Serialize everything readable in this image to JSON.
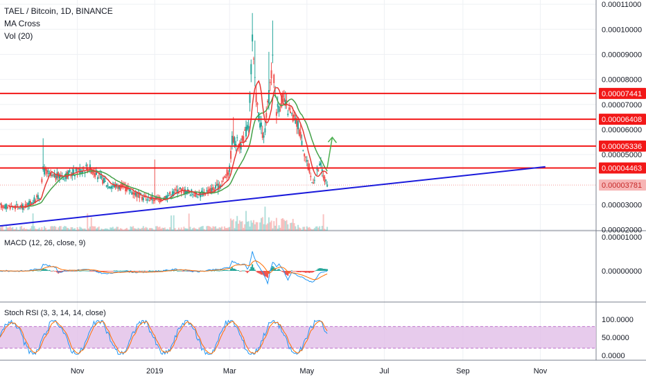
{
  "header": {
    "symbol_line": "TAEL / Bitcoin, 1D, BINANCE",
    "ma_label": "MA Cross",
    "vol_label": "Vol (20)"
  },
  "panes": {
    "macd_label": "MACD (12, 26, close, 9)",
    "rsi_label": "Stoch RSI (3, 3, 14, 14, close)"
  },
  "colors": {
    "candle_up": "#26a69a",
    "candle_down": "#ef5350",
    "fast_ma": "#e53935",
    "slow_ma": "#43a047",
    "trendline": "#1a1adb",
    "resistance": "#f21818",
    "arrow": "#4caf50",
    "macd_line": "#2196f3",
    "signal_line": "#ff6d00",
    "rsi_k": "#2196f3",
    "rsi_d": "#ff6d00",
    "rsi_band": "#e1bee7"
  },
  "chart_data": {
    "type": "candlestick",
    "symbol": "TAEL / Bitcoin",
    "interval": "1D",
    "exchange": "BINANCE",
    "x_axis": {
      "ticks": [
        {
          "label": "Nov",
          "date": "2018-11-01"
        },
        {
          "label": "2019",
          "date": "2019-01-01"
        },
        {
          "label": "Mar",
          "date": "2019-03-01"
        },
        {
          "label": "May",
          "date": "2019-05-01"
        },
        {
          "label": "Jul",
          "date": "2019-07-01"
        },
        {
          "label": "Sep",
          "date": "2019-09-01"
        },
        {
          "label": "Nov",
          "date": "2019-11-01"
        }
      ],
      "range": [
        "2018-09-01",
        "2019-12-15"
      ]
    },
    "price_axis": {
      "range": [
        1.96e-05,
        0.0001117
      ],
      "ticks": [
        "0.00011000",
        "0.00010000",
        "0.00009000",
        "0.00008000",
        "0.00007000",
        "0.00006000",
        "0.00005000",
        "0.00003000",
        "0.00002000"
      ]
    },
    "price_markers": [
      {
        "value": 7.441e-05,
        "label": "0.00007441"
      },
      {
        "value": 6.408e-05,
        "label": "0.00006408"
      },
      {
        "value": 5.336e-05,
        "label": "0.00005336"
      },
      {
        "value": 4.463e-05,
        "label": "0.00004463"
      },
      {
        "value": 3.781e-05,
        "label": "0.00003781",
        "type": "last_price"
      }
    ],
    "resistance_lines": [
      7.441e-05,
      6.408e-05,
      5.336e-05,
      4.463e-05
    ],
    "trendline": {
      "start": {
        "date": "2018-09-01",
        "value": 2.15e-05
      },
      "end": {
        "date": "2019-11-05",
        "value": 4.51e-05
      }
    },
    "projection_arrow": {
      "start": {
        "date": "2019-05-17",
        "value": 4.48e-05
      },
      "end": {
        "date": "2019-05-21",
        "value": 5.69e-05
      }
    },
    "price_keypoints": [
      {
        "date": "2018-09-01",
        "value": 2.95e-05
      },
      {
        "date": "2018-09-20",
        "value": 2.9e-05
      },
      {
        "date": "2018-10-03",
        "value": 3.35e-05
      },
      {
        "date": "2018-10-05",
        "value": 4.4e-05
      },
      {
        "date": "2018-10-12",
        "value": 4.1e-05
      },
      {
        "date": "2018-10-25",
        "value": 4.2e-05
      },
      {
        "date": "2018-11-10",
        "value": 4.5e-05
      },
      {
        "date": "2018-11-25",
        "value": 3.8e-05
      },
      {
        "date": "2018-12-08",
        "value": 3.7e-05
      },
      {
        "date": "2018-12-22",
        "value": 3.3e-05
      },
      {
        "date": "2019-01-05",
        "value": 3.2e-05
      },
      {
        "date": "2019-01-20",
        "value": 3.6e-05
      },
      {
        "date": "2019-02-05",
        "value": 3.4e-05
      },
      {
        "date": "2019-02-20",
        "value": 3.7e-05
      },
      {
        "date": "2019-03-01",
        "value": 4.4e-05
      },
      {
        "date": "2019-03-03",
        "value": 5.6e-05
      },
      {
        "date": "2019-03-10",
        "value": 5.4e-05
      },
      {
        "date": "2019-03-16",
        "value": 6.2e-05
      },
      {
        "date": "2019-03-19",
        "value": 9.5e-05
      },
      {
        "date": "2019-03-21",
        "value": 7.8e-05
      },
      {
        "date": "2019-03-24",
        "value": 6.5e-05
      },
      {
        "date": "2019-03-28",
        "value": 5.6e-05
      },
      {
        "date": "2019-04-01",
        "value": 7.3e-05
      },
      {
        "date": "2019-04-04",
        "value": 8.7e-05
      },
      {
        "date": "2019-04-07",
        "value": 6.8e-05
      },
      {
        "date": "2019-04-12",
        "value": 7.2e-05
      },
      {
        "date": "2019-04-18",
        "value": 6.6e-05
      },
      {
        "date": "2019-04-24",
        "value": 6.2e-05
      },
      {
        "date": "2019-05-01",
        "value": 4.7e-05
      },
      {
        "date": "2019-05-05",
        "value": 3.9e-05
      },
      {
        "date": "2019-05-09",
        "value": 4.3e-05
      },
      {
        "date": "2019-05-12",
        "value": 4.6e-05
      },
      {
        "date": "2019-05-14",
        "value": 4.1e-05
      },
      {
        "date": "2019-05-17",
        "value": 3.78e-05
      }
    ],
    "macd": {
      "y_ticks": [
        "0.00001000",
        "0.00000000"
      ]
    },
    "stoch_rsi": {
      "y_ticks": [
        "100.0000",
        "50.0000",
        "0.0000"
      ],
      "bands": [
        80,
        20
      ]
    }
  }
}
